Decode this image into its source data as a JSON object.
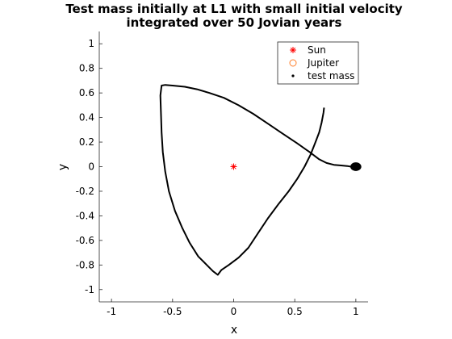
{
  "chart_data": {
    "type": "scatter",
    "title": [
      "Test mass initially at L1 with small initial velocity",
      "integrated over 50 Jovian years"
    ],
    "xlabel": "x",
    "ylabel": "y",
    "xlim": [
      -1.1,
      1.1
    ],
    "ylim": [
      -1.1,
      1.1
    ],
    "xticks": [
      -1,
      -0.5,
      0,
      0.5,
      1
    ],
    "xtick_labels": [
      "-1",
      "-0.5",
      "0",
      "0.5",
      "1"
    ],
    "yticks": [
      -1,
      -0.8,
      -0.6,
      -0.4,
      -0.2,
      0,
      0.2,
      0.4,
      0.6,
      0.8,
      1
    ],
    "ytick_labels": [
      "-1",
      "-0.8",
      "-0.6",
      "-0.4",
      "-0.2",
      "0",
      "0.2",
      "0.4",
      "0.6",
      "0.8",
      "1"
    ],
    "grid": false,
    "legend_position": "top-right",
    "series": [
      {
        "name": "Sun",
        "marker": "asterisk",
        "color": "#ff0000",
        "points": [
          [
            0,
            0
          ]
        ]
      },
      {
        "name": "Jupiter",
        "marker": "circle",
        "color": "#ff7f2a",
        "points": []
      },
      {
        "name": "test mass",
        "marker": "dot",
        "color": "#000000",
        "path": [
          [
            0.74,
            0.48
          ],
          [
            0.735,
            0.44
          ],
          [
            0.72,
            0.36
          ],
          [
            0.7,
            0.28
          ],
          [
            0.67,
            0.2
          ],
          [
            0.63,
            0.1
          ],
          [
            0.58,
            0.0
          ],
          [
            0.52,
            -0.1
          ],
          [
            0.45,
            -0.2
          ],
          [
            0.37,
            -0.3
          ],
          [
            0.28,
            -0.42
          ],
          [
            0.2,
            -0.54
          ],
          [
            0.12,
            -0.66
          ],
          [
            0.04,
            -0.74
          ],
          [
            -0.04,
            -0.8
          ],
          [
            -0.1,
            -0.84
          ],
          [
            -0.13,
            -0.88
          ],
          [
            -0.17,
            -0.85
          ],
          [
            -0.22,
            -0.8
          ],
          [
            -0.29,
            -0.73
          ],
          [
            -0.36,
            -0.62
          ],
          [
            -0.42,
            -0.5
          ],
          [
            -0.48,
            -0.36
          ],
          [
            -0.53,
            -0.2
          ],
          [
            -0.56,
            -0.04
          ],
          [
            -0.58,
            0.12
          ],
          [
            -0.59,
            0.28
          ],
          [
            -0.595,
            0.44
          ],
          [
            -0.6,
            0.58
          ],
          [
            -0.59,
            0.66
          ],
          [
            -0.56,
            0.665
          ],
          [
            -0.5,
            0.66
          ],
          [
            -0.4,
            0.65
          ],
          [
            -0.3,
            0.63
          ],
          [
            -0.2,
            0.6
          ],
          [
            -0.08,
            0.56
          ],
          [
            0.04,
            0.5
          ],
          [
            0.16,
            0.43
          ],
          [
            0.28,
            0.35
          ],
          [
            0.4,
            0.27
          ],
          [
            0.52,
            0.19
          ],
          [
            0.62,
            0.12
          ],
          [
            0.7,
            0.06
          ],
          [
            0.76,
            0.03
          ],
          [
            0.82,
            0.015
          ],
          [
            0.88,
            0.01
          ],
          [
            0.93,
            0.005
          ],
          [
            0.96,
            0.0
          ],
          [
            0.99,
            0.0
          ]
        ],
        "cluster": {
          "center": [
            1.0,
            0.0
          ],
          "rx": 0.045,
          "ry": 0.035
        }
      }
    ]
  }
}
